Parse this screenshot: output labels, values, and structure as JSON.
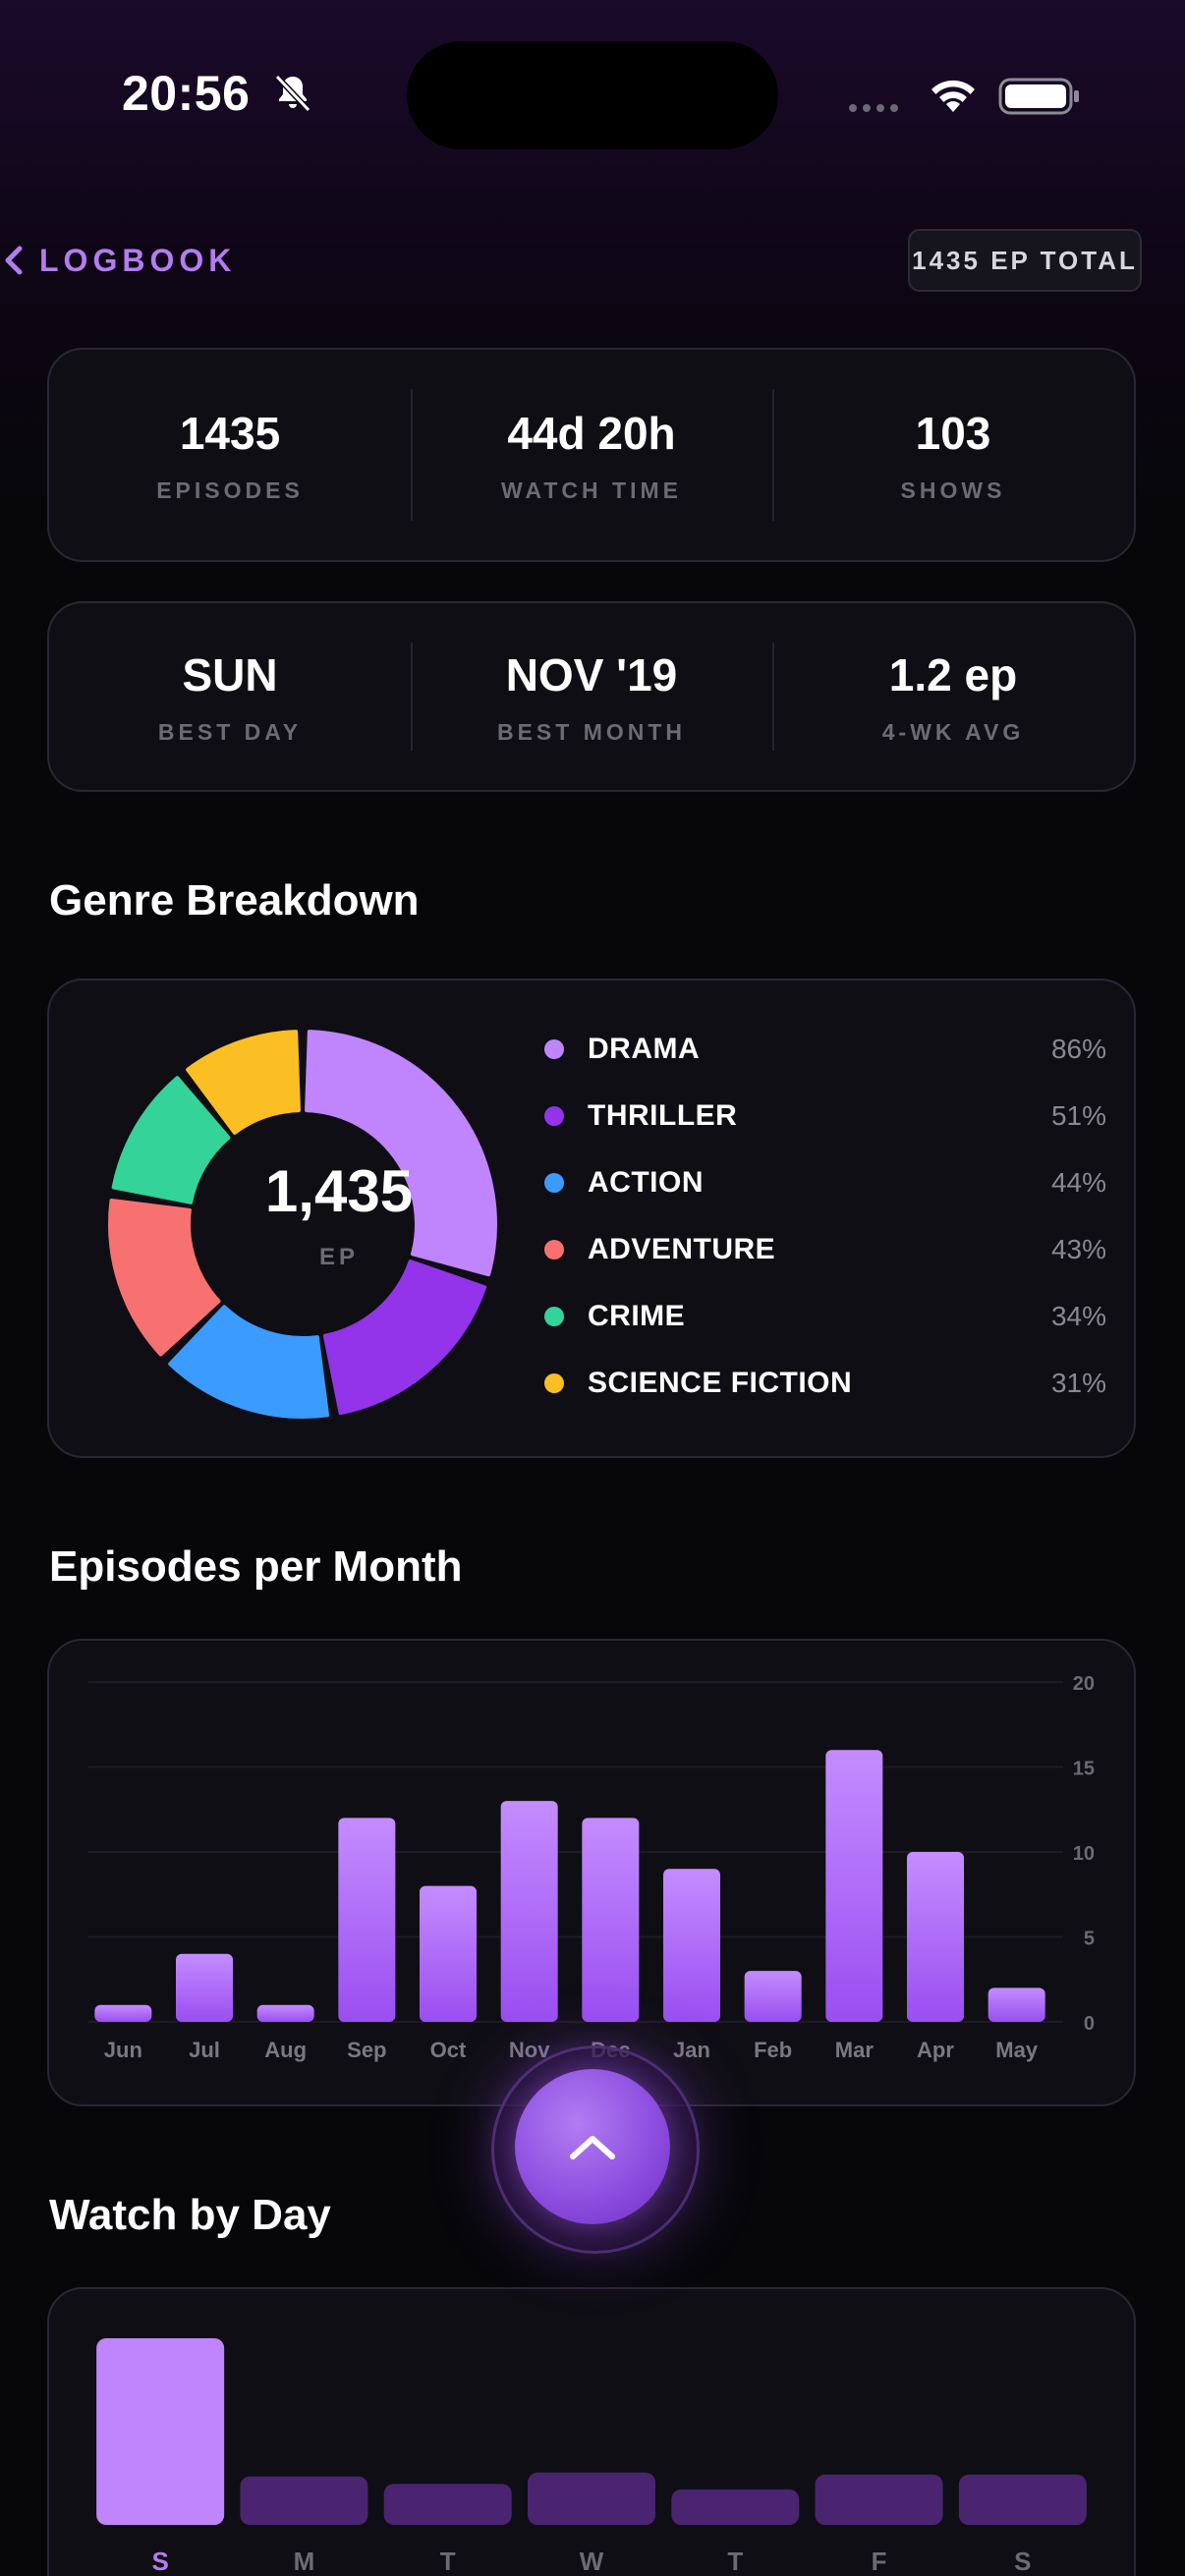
{
  "status_bar": {
    "time": "20:56",
    "icons": [
      "bell-slash-icon",
      "signal-dots-icon",
      "wifi-icon",
      "battery-icon"
    ]
  },
  "nav": {
    "back_label": "LOGBOOK",
    "total_badge": "1435 EP TOTAL"
  },
  "stats_top": [
    {
      "value": "1435",
      "label": "EPISODES"
    },
    {
      "value": "44d 20h",
      "label": "WATCH TIME"
    },
    {
      "value": "103",
      "label": "SHOWS"
    }
  ],
  "stats_bottom": [
    {
      "value": "SUN",
      "label": "BEST DAY"
    },
    {
      "value": "NOV '19",
      "label": "BEST MONTH"
    },
    {
      "value": "1.2 ep",
      "label": "4-WK AVG"
    }
  ],
  "genre": {
    "title": "Genre Breakdown",
    "center_value": "1,435",
    "center_label": "EP",
    "items": [
      {
        "name": "DRAMA",
        "pct": "86%",
        "value": 86,
        "color": "#c084fc"
      },
      {
        "name": "THRILLER",
        "pct": "51%",
        "value": 51,
        "color": "#9333ea"
      },
      {
        "name": "ACTION",
        "pct": "44%",
        "value": 44,
        "color": "#3b9bff"
      },
      {
        "name": "ADVENTURE",
        "pct": "43%",
        "value": 43,
        "color": "#f87171"
      },
      {
        "name": "CRIME",
        "pct": "34%",
        "value": 34,
        "color": "#34d399"
      },
      {
        "name": "SCIENCE FICTION",
        "pct": "31%",
        "value": 31,
        "color": "#fbbf24"
      }
    ]
  },
  "monthly": {
    "title": "Episodes per Month",
    "chart_data": {
      "type": "bar",
      "categories": [
        "Jun",
        "Jul",
        "Aug",
        "Sep",
        "Oct",
        "Nov",
        "Dec",
        "Jan",
        "Feb",
        "Mar",
        "Apr",
        "May"
      ],
      "values": [
        1,
        4,
        1,
        12,
        8,
        13,
        12,
        9,
        3,
        16,
        10,
        2
      ],
      "yticks": [
        "0",
        "5",
        "10",
        "15",
        "20"
      ],
      "ylim": [
        0,
        20
      ],
      "grid": true
    }
  },
  "daily": {
    "title": "Watch by Day",
    "chart_data": {
      "type": "bar",
      "categories": [
        "S",
        "M",
        "T",
        "W",
        "T",
        "F",
        "S"
      ],
      "values": [
        1.0,
        0.26,
        0.22,
        0.28,
        0.19,
        0.27,
        0.27
      ],
      "highlight": "S"
    }
  },
  "colors": {
    "accent": "#b57cf0",
    "bar_top": "#c48cff",
    "bar_bottom": "#9a4ef0",
    "day_bar": "#4a2470",
    "day_bar_best": "#c084fc"
  }
}
